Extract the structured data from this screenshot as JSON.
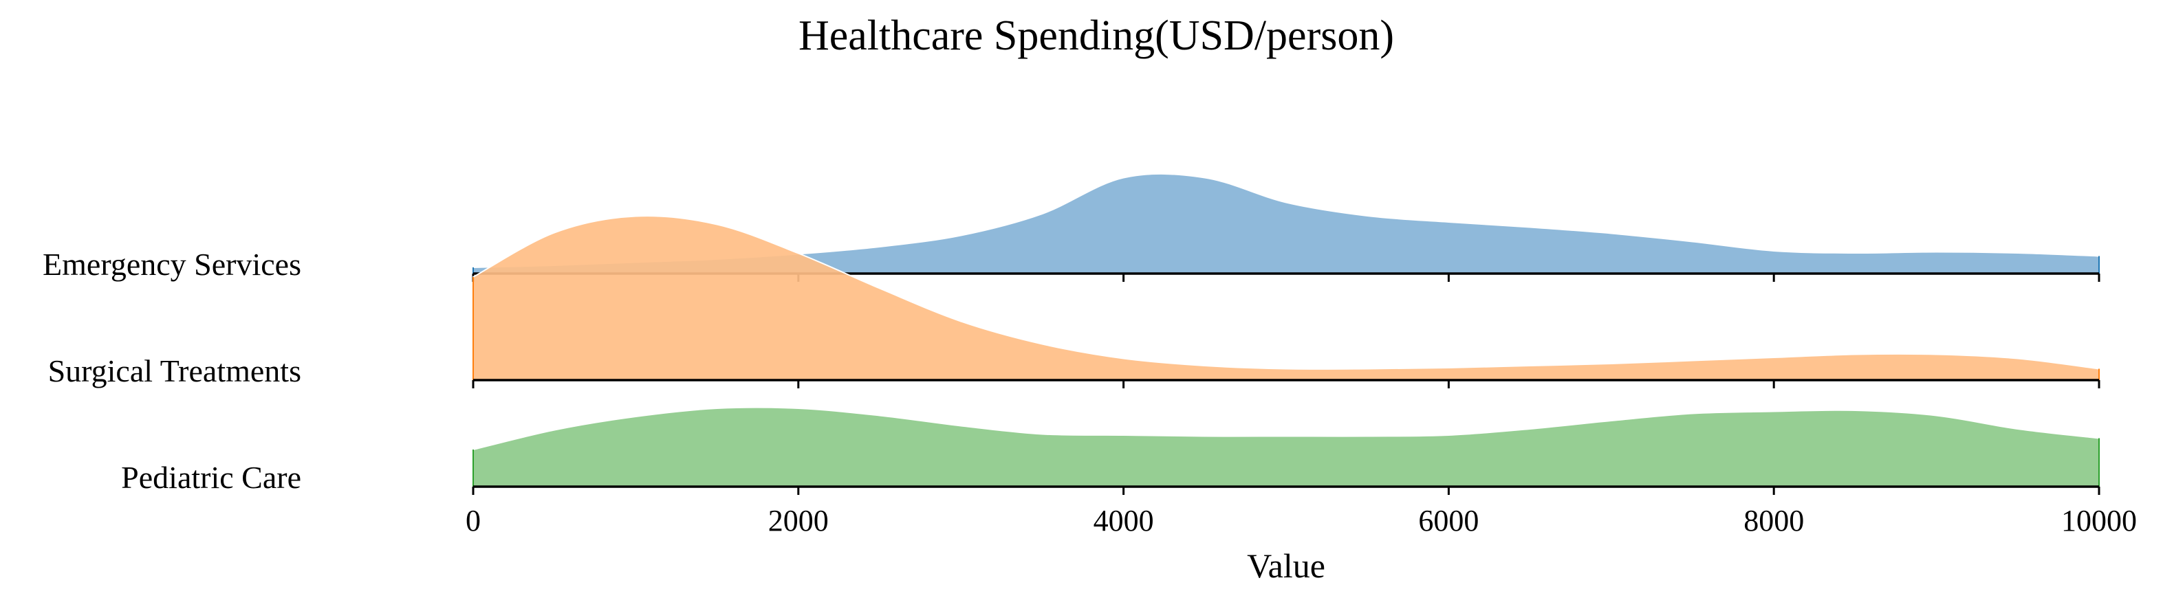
{
  "chart_data": {
    "type": "area",
    "subtype": "ridgeline",
    "title": "Healthcare Spending(USD/person)",
    "xlabel": "Value",
    "ylabel": "",
    "xlim": [
      0,
      10000
    ],
    "xticks": [
      0,
      2000,
      4000,
      6000,
      8000,
      10000
    ],
    "x": [
      0,
      500,
      1000,
      1500,
      2000,
      2500,
      3000,
      3500,
      4000,
      4500,
      5000,
      5500,
      6000,
      6500,
      7000,
      7500,
      8000,
      8500,
      9000,
      9500,
      10000
    ],
    "series": [
      {
        "name": "Emergency Services",
        "color": "#8fb9da",
        "edge": "#1f77b4",
        "values": [
          0.06,
          0.08,
          0.11,
          0.14,
          0.19,
          0.26,
          0.37,
          0.58,
          0.93,
          0.93,
          0.69,
          0.56,
          0.5,
          0.45,
          0.39,
          0.31,
          0.22,
          0.2,
          0.21,
          0.2,
          0.17
        ]
      },
      {
        "name": "Surgical Treatments",
        "color": "#ffbe86",
        "edge": "#ff7f0e",
        "values": [
          1.0,
          1.43,
          1.59,
          1.51,
          1.23,
          0.89,
          0.57,
          0.35,
          0.21,
          0.14,
          0.11,
          0.11,
          0.12,
          0.14,
          0.16,
          0.19,
          0.22,
          0.25,
          0.25,
          0.21,
          0.11
        ]
      },
      {
        "name": "Pediatric Care",
        "color": "#96ce93",
        "edge": "#2ca02c",
        "values": [
          0.36,
          0.55,
          0.68,
          0.76,
          0.76,
          0.69,
          0.59,
          0.51,
          0.5,
          0.49,
          0.49,
          0.49,
          0.5,
          0.56,
          0.64,
          0.71,
          0.73,
          0.74,
          0.69,
          0.56,
          0.47
        ]
      }
    ],
    "grid": false,
    "legend": "none"
  }
}
